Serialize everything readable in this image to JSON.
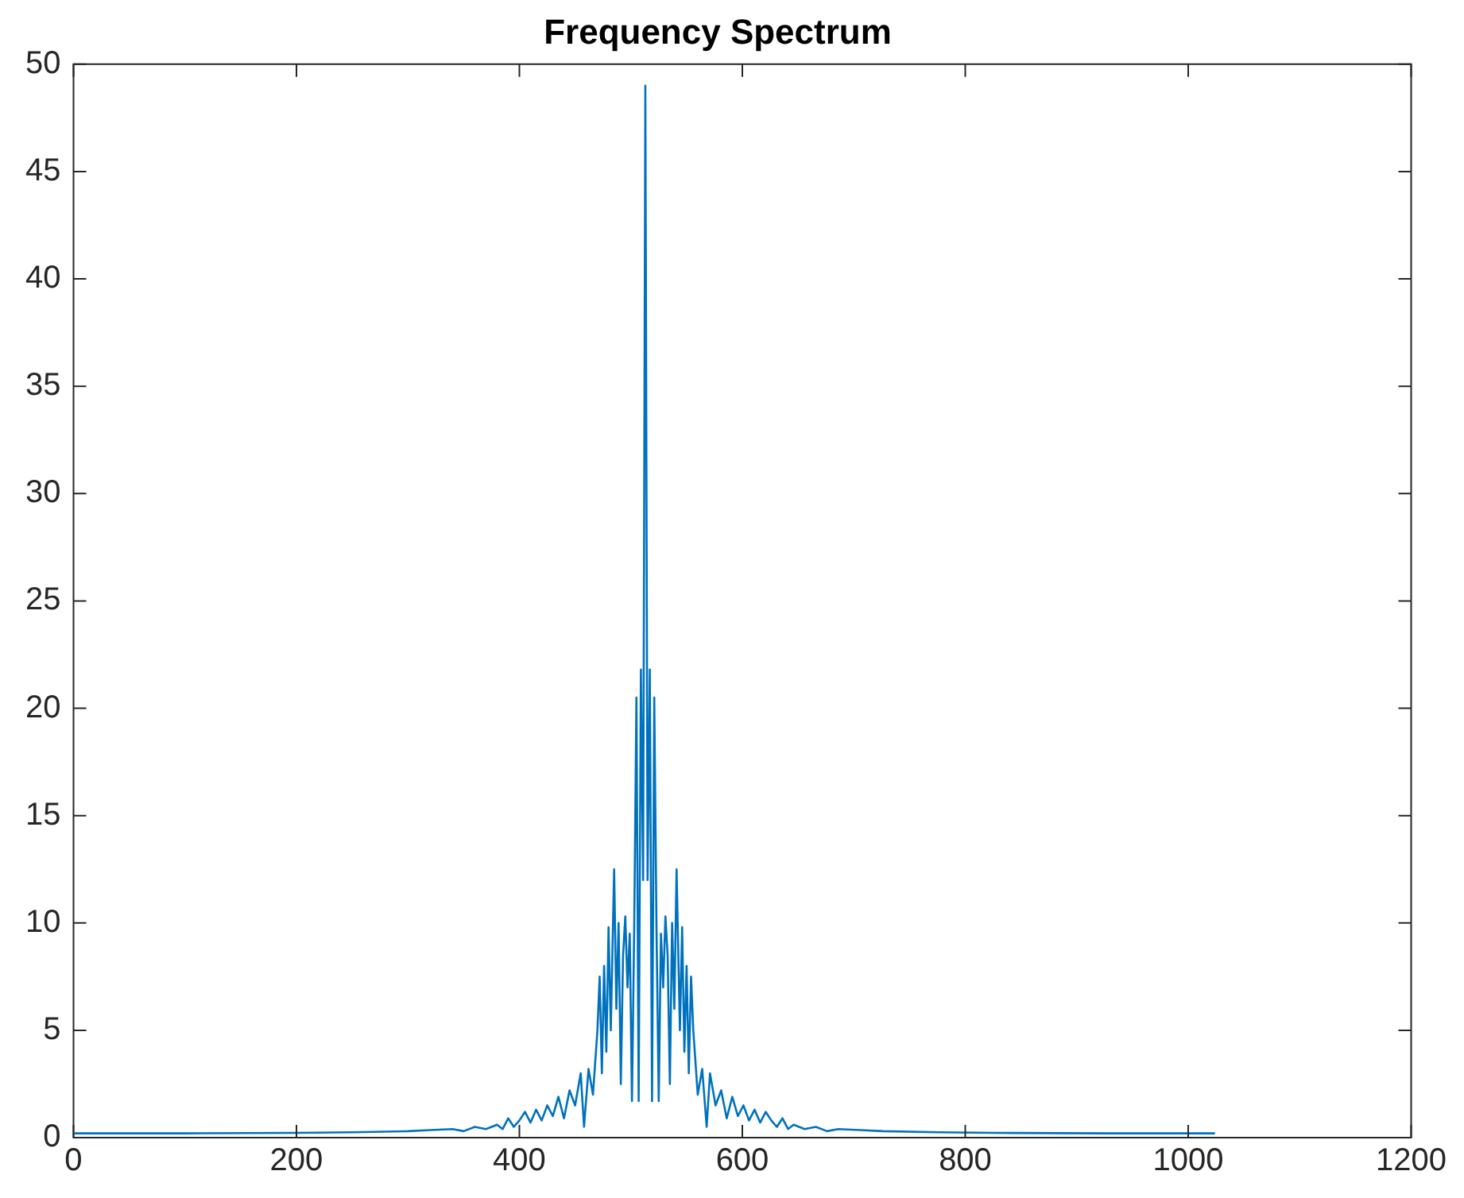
{
  "chart_data": {
    "type": "line",
    "title": "Frequency Spectrum",
    "xlim": [
      0,
      1200
    ],
    "xticks": [
      0,
      200,
      400,
      600,
      800,
      1000,
      1200
    ],
    "ylim": [
      0,
      50
    ],
    "yticks": [
      0,
      5,
      10,
      15,
      20,
      25,
      30,
      35,
      40,
      45,
      50
    ],
    "grid": false,
    "marker": "none",
    "line_style": "solid",
    "series": [
      {
        "color": "#0072bd",
        "x": [
          1,
          100,
          200,
          250,
          300,
          320,
          340,
          350,
          360,
          370,
          380,
          385,
          390,
          395,
          400,
          405,
          410,
          415,
          420,
          425,
          430,
          435,
          440,
          445,
          450,
          455,
          458,
          462,
          466,
          470,
          472,
          474,
          476,
          478,
          480,
          482,
          485,
          487,
          489,
          491,
          493,
          495,
          497,
          499,
          501,
          503,
          505,
          507,
          509,
          511,
          513,
          515,
          517,
          519,
          521,
          523,
          525,
          527,
          529,
          531,
          533,
          535,
          537,
          539,
          541,
          544,
          546,
          548,
          550,
          552,
          554,
          556,
          560,
          564,
          568,
          571,
          576,
          581,
          586,
          591,
          596,
          601,
          606,
          611,
          616,
          621,
          626,
          631,
          636,
          641,
          646,
          656,
          666,
          676,
          686,
          706,
          726,
          776,
          826,
          926,
          1024
        ],
        "values": [
          0.2,
          0.2,
          0.22,
          0.25,
          0.3,
          0.35,
          0.4,
          0.3,
          0.5,
          0.4,
          0.6,
          0.4,
          0.9,
          0.5,
          0.8,
          1.2,
          0.7,
          1.3,
          0.8,
          1.5,
          1.0,
          1.9,
          0.9,
          2.2,
          1.5,
          3.0,
          0.5,
          3.2,
          2.0,
          5.0,
          7.5,
          3.0,
          8.0,
          4.0,
          9.8,
          5.0,
          12.5,
          6.0,
          10.0,
          2.5,
          8.5,
          10.3,
          7.0,
          9.5,
          1.7,
          9.8,
          20.5,
          1.7,
          21.8,
          12.0,
          49,
          12.0,
          21.8,
          1.7,
          20.5,
          9.8,
          1.7,
          9.5,
          7.0,
          10.3,
          8.5,
          2.5,
          10.0,
          6.0,
          12.5,
          5.0,
          9.8,
          4.0,
          8.0,
          3.0,
          7.5,
          5.0,
          2.0,
          3.2,
          0.5,
          3.0,
          1.5,
          2.2,
          0.9,
          1.9,
          1.0,
          1.5,
          0.8,
          1.3,
          0.7,
          1.2,
          0.8,
          0.5,
          0.9,
          0.4,
          0.6,
          0.4,
          0.5,
          0.3,
          0.4,
          0.35,
          0.3,
          0.25,
          0.22,
          0.2,
          0.2
        ]
      }
    ]
  }
}
